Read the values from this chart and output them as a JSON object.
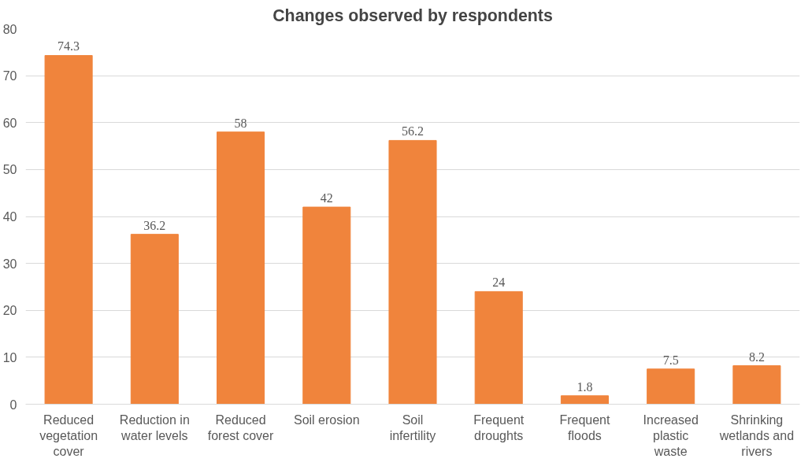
{
  "chart_data": {
    "type": "bar",
    "title": "Changes observed by respondents",
    "categories": [
      "Reduced vegetation cover",
      "Reduction in water levels",
      "Reduced forest cover",
      "Soil erosion",
      "Soil infertility",
      "Frequent droughts",
      "Frequent floods",
      "Increased plastic waste",
      "Shrinking wetlands and rivers"
    ],
    "values": [
      74.3,
      36.2,
      58,
      42,
      56.2,
      24,
      1.8,
      7.5,
      8.2
    ],
    "color": "#f0843c",
    "ylim": [
      0,
      80
    ],
    "yticks": [
      0,
      10,
      20,
      30,
      40,
      50,
      60,
      70,
      80
    ],
    "grid": "y",
    "data_labels": true
  }
}
